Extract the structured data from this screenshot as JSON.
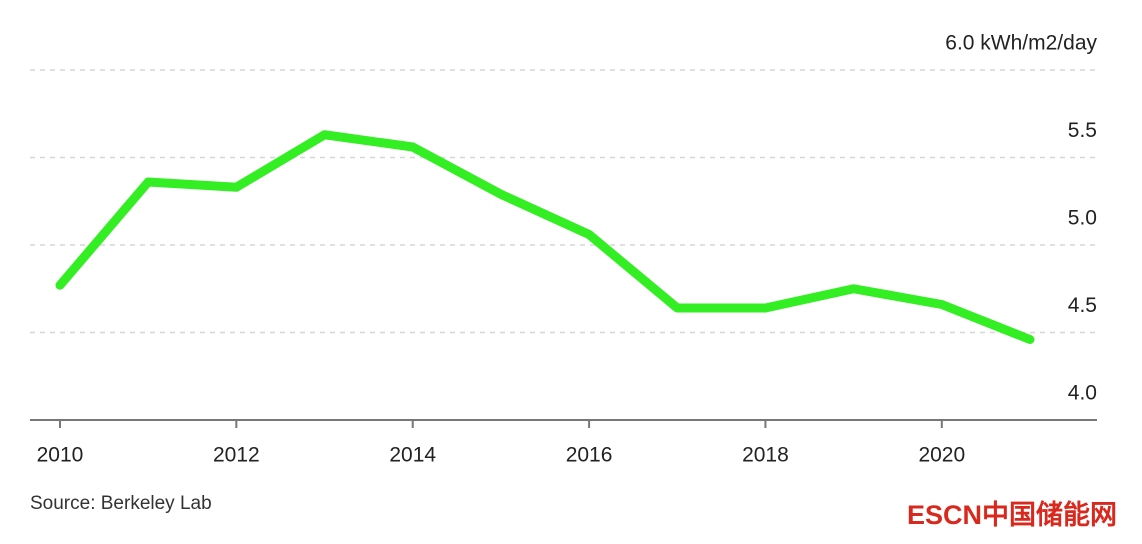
{
  "chart_data": {
    "type": "line",
    "x": [
      2010,
      2011,
      2012,
      2013,
      2014,
      2015,
      2016,
      2017,
      2018,
      2019,
      2020,
      2021
    ],
    "series": [
      {
        "color": "#33ee22",
        "values": [
          4.77,
          5.36,
          5.33,
          5.63,
          5.56,
          5.29,
          5.06,
          4.64,
          4.64,
          4.75,
          4.66,
          4.46
        ]
      }
    ],
    "xlim": [
      2009.66,
      2021.76
    ],
    "xticks": [
      2010,
      2012,
      2014,
      2016,
      2018,
      2020
    ],
    "ylim": [
      4.0,
      6.0
    ],
    "yticks": [
      {
        "value": 4.0,
        "label": "4.0"
      },
      4.5,
      {
        "value": 5.0,
        "label": "5.0"
      },
      5.5,
      {
        "value": 6.0,
        "label": "6.0 kWh/m2/day"
      }
    ],
    "grid": true,
    "source": "Source: Berkeley Lab",
    "watermark": "ESCN中国储能网"
  }
}
